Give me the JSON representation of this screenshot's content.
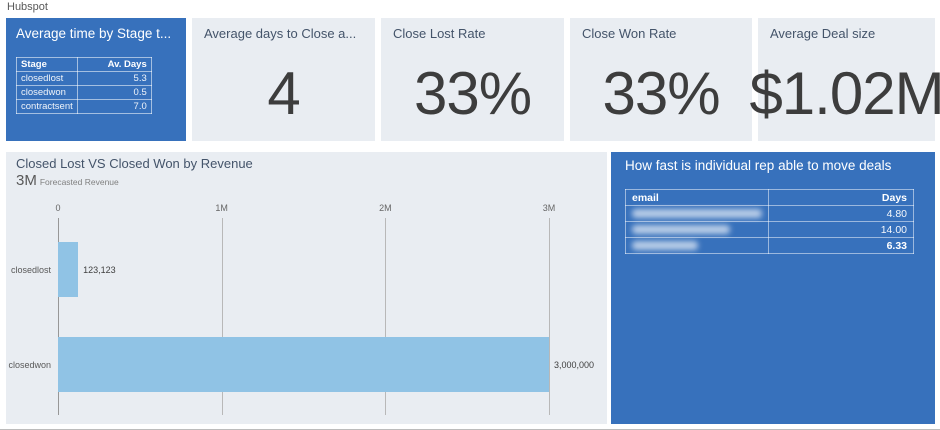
{
  "page": {
    "label": "Hubspot"
  },
  "colors": {
    "accent_blue": "#3771bc",
    "tile_bg": "#e9edf2",
    "bar_fill": "#90c3e5",
    "title_text": "#44546a"
  },
  "stage_card": {
    "title": "Average time by Stage t...",
    "columns": {
      "stage": "Stage",
      "days": "Av. Days"
    },
    "rows": [
      {
        "stage": "closedlost",
        "days": "5.3"
      },
      {
        "stage": "closedwon",
        "days": "0.5"
      },
      {
        "stage": "contractsent",
        "days": "7.0"
      }
    ]
  },
  "kpis": [
    {
      "title": "Average days to Close a...",
      "value": "4"
    },
    {
      "title": "Close Lost Rate",
      "value": "33%"
    },
    {
      "title": "Close Won Rate",
      "value": "33%"
    },
    {
      "title": "Average Deal size",
      "value": "$1.02M"
    }
  ],
  "chart": {
    "title": "Closed Lost VS Closed Won by Revenue",
    "callout_value": "3M",
    "callout_label": "Forecasted Revenue",
    "chart_data": {
      "type": "bar",
      "orientation": "horizontal",
      "title": "Closed Lost VS Closed Won by Revenue",
      "categories": [
        "closedlost",
        "closedwon"
      ],
      "values": [
        123123,
        3000000
      ],
      "data_labels": [
        "123,123",
        "3,000,000"
      ],
      "x_ticks": [
        "0",
        "1M",
        "2M",
        "3M"
      ],
      "xlim": [
        0,
        3000000
      ],
      "grid": true,
      "legend": false
    }
  },
  "rep_panel": {
    "title": "How fast is individual rep able to move deals",
    "columns": {
      "email": "email",
      "days": "Days"
    },
    "rows": [
      {
        "email_redacted": true,
        "days": "4.80"
      },
      {
        "email_redacted": true,
        "days": "14.00"
      },
      {
        "email_redacted": true,
        "days": "6.33"
      }
    ]
  }
}
